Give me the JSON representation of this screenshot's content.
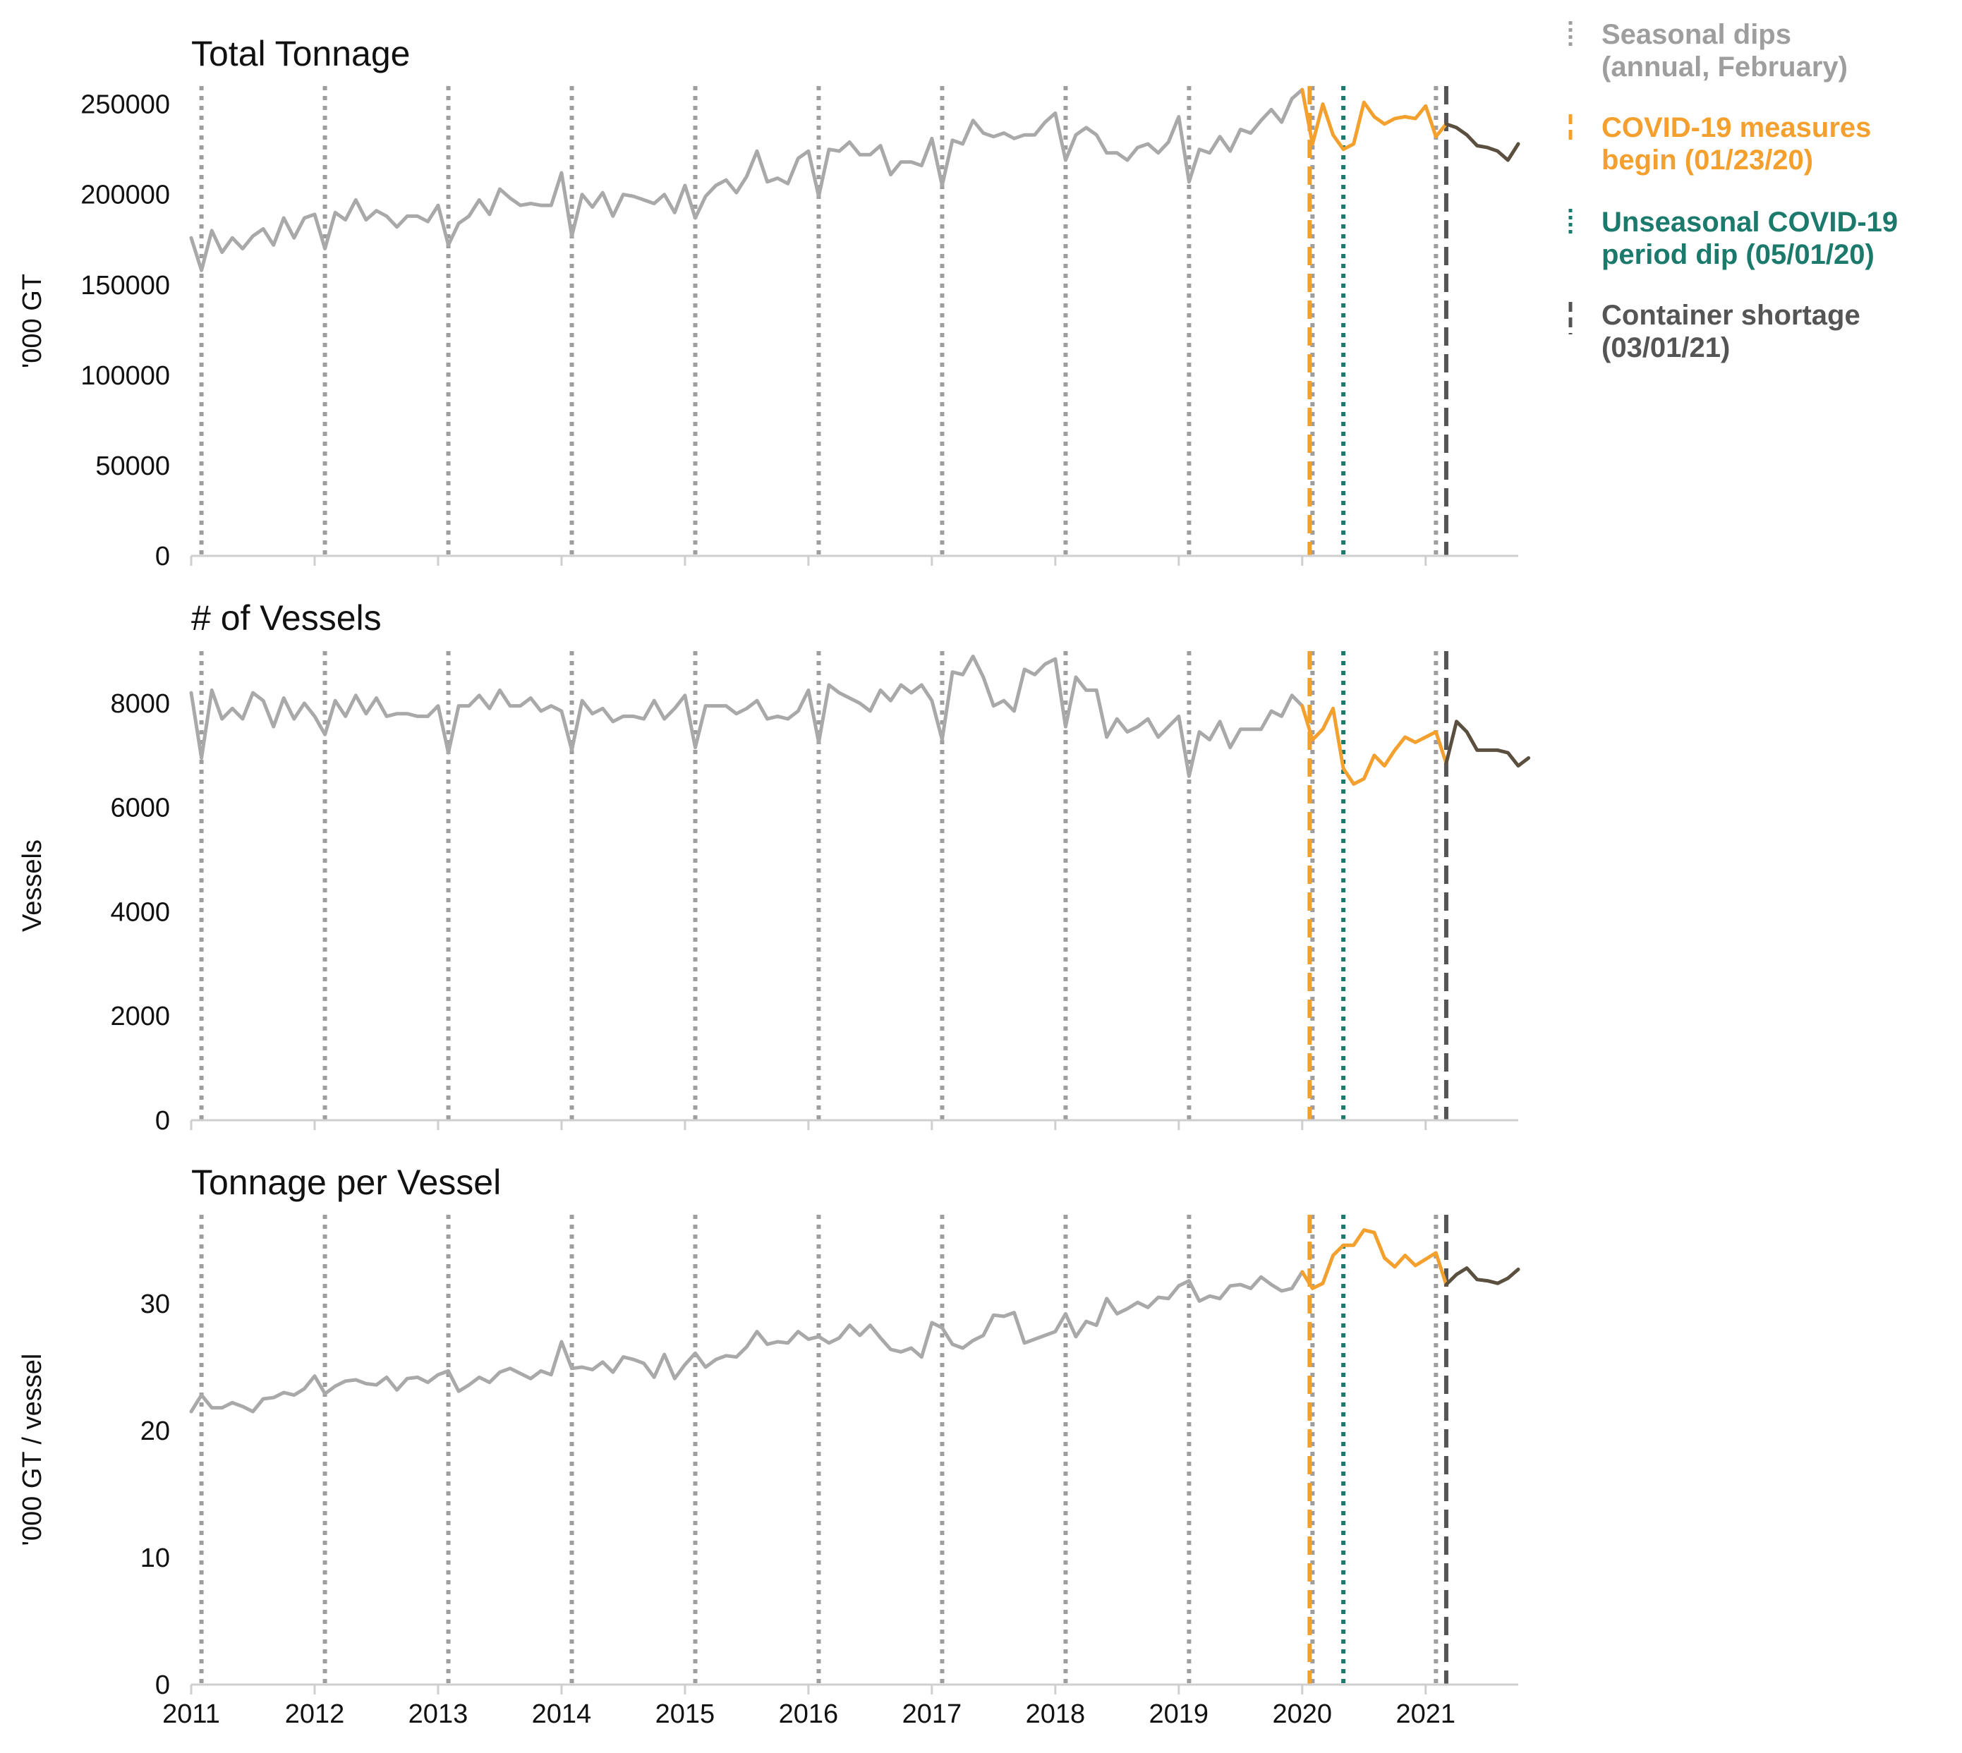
{
  "colors": {
    "normal": "#a9a9a9",
    "covid": "#f4a02e",
    "shortage_series": "#5b5040",
    "seasonal": "#9e9e9e",
    "covid_measures": "#f4a02e",
    "covid_dip": "#1b7a6b",
    "container_shortage": "#555555",
    "axis": "#cfcfcf"
  },
  "legend": {
    "seasonal": {
      "line1": "Seasonal dips",
      "line2": "(annual, February)"
    },
    "covid_measures": {
      "line1": "COVID-19 measures",
      "line2": "begin (01/23/20)"
    },
    "covid_dip": {
      "line1": "Unseasonal COVID-19",
      "line2": "period dip (05/01/20)"
    },
    "container_shortage": {
      "line1": "Container shortage",
      "line2": "(03/01/21)"
    }
  },
  "chart_data": [
    {
      "type": "line",
      "title": "Total Tonnage",
      "ylabel": "'000 GT",
      "xlabel": "",
      "xlim": [
        2011.0,
        2021.75
      ],
      "ylim": [
        0,
        260000
      ],
      "x_start": "2011-01",
      "x_step": "month",
      "xticks": [
        2011,
        2012,
        2013,
        2014,
        2015,
        2016,
        2017,
        2018,
        2019,
        2020,
        2021
      ],
      "yticks": [
        0,
        50000,
        100000,
        150000,
        200000,
        250000
      ],
      "show_x_tick_labels": false,
      "values": [
        176000,
        158000,
        180000,
        168000,
        176000,
        170000,
        177000,
        181000,
        172000,
        187000,
        176000,
        187000,
        189000,
        170000,
        190000,
        186000,
        197000,
        186000,
        191000,
        188000,
        182000,
        188000,
        188000,
        185000,
        194000,
        172000,
        184000,
        188000,
        197000,
        189000,
        203000,
        198000,
        194000,
        195000,
        194000,
        194000,
        212000,
        177000,
        200000,
        193000,
        201000,
        188000,
        200000,
        199000,
        197000,
        195000,
        200000,
        190000,
        205000,
        187000,
        199000,
        205000,
        208000,
        201000,
        210000,
        224000,
        207000,
        209000,
        206000,
        220000,
        224000,
        199000,
        225000,
        224000,
        229000,
        222000,
        222000,
        227000,
        211000,
        218000,
        218000,
        216000,
        231000,
        205000,
        230000,
        228000,
        241000,
        234000,
        232000,
        234000,
        231000,
        233000,
        233000,
        240000,
        245000,
        219000,
        233000,
        237000,
        233000,
        223000,
        223000,
        219000,
        226000,
        228000,
        223000,
        229000,
        243000,
        207000,
        225000,
        223000,
        232000,
        224000,
        236000,
        234000,
        241000,
        247000,
        240000,
        253000,
        258000,
        228000,
        250000,
        233000,
        225000,
        228000,
        251000,
        243000,
        239000,
        242000,
        243000,
        242000,
        249000,
        232000,
        239000,
        237000,
        233000,
        227000,
        226000,
        224000,
        219000,
        228000
      ],
      "events": [
        {
          "name": "COVID-19 measures begin",
          "date": "2020-01-23"
        },
        {
          "name": "Unseasonal COVID-19 period dip",
          "date": "2020-05-01"
        },
        {
          "name": "Container shortage",
          "date": "2021-03-01"
        }
      ]
    },
    {
      "type": "line",
      "title": "# of Vessels",
      "ylabel": "Vessels",
      "xlabel": "",
      "xlim": [
        2011.0,
        2021.75
      ],
      "ylim": [
        0,
        9000
      ],
      "x_start": "2011-01",
      "x_step": "month",
      "xticks": [
        2011,
        2012,
        2013,
        2014,
        2015,
        2016,
        2017,
        2018,
        2019,
        2020,
        2021
      ],
      "yticks": [
        0,
        2000,
        4000,
        6000,
        8000
      ],
      "show_x_tick_labels": false,
      "values": [
        8200,
        6950,
        8250,
        7700,
        7900,
        7700,
        8200,
        8050,
        7550,
        8100,
        7700,
        8000,
        7750,
        7400,
        8050,
        7750,
        8150,
        7800,
        8100,
        7750,
        7800,
        7800,
        7750,
        7750,
        7950,
        7050,
        7950,
        7950,
        8150,
        7900,
        8250,
        7950,
        7950,
        8100,
        7850,
        7950,
        7850,
        7100,
        8050,
        7800,
        7900,
        7650,
        7750,
        7750,
        7700,
        8050,
        7700,
        7900,
        8150,
        7150,
        7950,
        7950,
        7950,
        7800,
        7900,
        8050,
        7700,
        7750,
        7700,
        7850,
        8250,
        7250,
        8350,
        8200,
        8100,
        8000,
        7850,
        8250,
        8050,
        8350,
        8200,
        8350,
        8050,
        7300,
        8600,
        8550,
        8900,
        8500,
        7950,
        8050,
        7850,
        8650,
        8550,
        8750,
        8850,
        7550,
        8500,
        8250,
        8250,
        7350,
        7700,
        7450,
        7550,
        7700,
        7350,
        7550,
        7750,
        6600,
        7450,
        7300,
        7650,
        7150,
        7500,
        7500,
        7500,
        7850,
        7750,
        8150,
        7950,
        7300,
        7500,
        7900,
        6750,
        6450,
        6550,
        7000,
        6800,
        7100,
        7350,
        7250,
        7350,
        7450,
        6850,
        7650,
        7450,
        7100,
        7100,
        7100,
        7050,
        6800,
        6950
      ],
      "events": [
        {
          "name": "COVID-19 measures begin",
          "date": "2020-01-23"
        },
        {
          "name": "Unseasonal COVID-19 period dip",
          "date": "2020-05-01"
        },
        {
          "name": "Container shortage",
          "date": "2021-03-01"
        }
      ]
    },
    {
      "type": "line",
      "title": "Tonnage per Vessel",
      "ylabel": "'000 GT / vessel",
      "xlabel": "",
      "xlim": [
        2011.0,
        2021.75
      ],
      "ylim": [
        0,
        37
      ],
      "x_start": "2011-01",
      "x_step": "month",
      "xticks": [
        2011,
        2012,
        2013,
        2014,
        2015,
        2016,
        2017,
        2018,
        2019,
        2020,
        2021
      ],
      "yticks": [
        0,
        10,
        20,
        30
      ],
      "show_x_tick_labels": true,
      "values": [
        21.5,
        22.8,
        21.8,
        21.8,
        22.2,
        21.9,
        21.5,
        22.5,
        22.6,
        23.0,
        22.8,
        23.3,
        24.3,
        22.9,
        23.5,
        23.9,
        24.0,
        23.7,
        23.6,
        24.2,
        23.2,
        24.1,
        24.2,
        23.8,
        24.4,
        24.7,
        23.1,
        23.6,
        24.2,
        23.8,
        24.6,
        24.9,
        24.5,
        24.1,
        24.7,
        24.4,
        27.0,
        24.9,
        25.0,
        24.8,
        25.4,
        24.6,
        25.8,
        25.6,
        25.3,
        24.2,
        26.0,
        24.1,
        25.2,
        26.1,
        25.0,
        25.6,
        25.9,
        25.8,
        26.6,
        27.8,
        26.8,
        27.0,
        26.9,
        27.8,
        27.2,
        27.4,
        26.9,
        27.3,
        28.3,
        27.5,
        28.3,
        27.3,
        26.4,
        26.2,
        26.5,
        25.8,
        28.5,
        28.1,
        26.8,
        26.5,
        27.1,
        27.5,
        29.1,
        29.0,
        29.3,
        26.9,
        27.2,
        27.5,
        27.8,
        29.2,
        27.4,
        28.6,
        28.3,
        30.4,
        29.2,
        29.6,
        30.1,
        29.7,
        30.5,
        30.4,
        31.4,
        31.8,
        30.2,
        30.6,
        30.4,
        31.4,
        31.5,
        31.2,
        32.1,
        31.5,
        31.0,
        31.2,
        32.5,
        31.2,
        31.6,
        33.8,
        34.6,
        34.6,
        35.8,
        35.6,
        33.6,
        32.9,
        33.8,
        33.0,
        33.5,
        34.0,
        31.5,
        32.3,
        32.8,
        31.9,
        31.8,
        31.6,
        32.0,
        32.7
      ]
    }
  ]
}
